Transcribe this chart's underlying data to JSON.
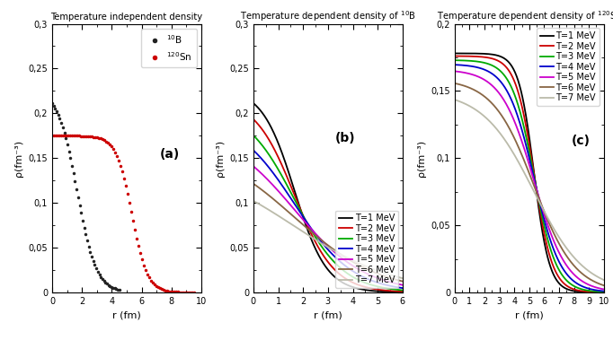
{
  "panel_a": {
    "title": "Temperature independent density",
    "xlabel": "r (fm)",
    "ylabel": "ρ(fm⁻³)",
    "xlim": [
      0,
      10
    ],
    "ylim": [
      0,
      0.3
    ],
    "yticks": [
      0,
      0.05,
      0.1,
      0.15,
      0.2,
      0.25,
      0.3
    ],
    "ytick_labels": [
      "0",
      "0,05",
      "0,1",
      "0,15",
      "0,2",
      "0,25",
      "0,3"
    ],
    "xticks": [
      0,
      2,
      4,
      6,
      8,
      10
    ],
    "label": "(a)",
    "B10": {
      "color": "#222222",
      "rho0": 0.228,
      "R": 1.65,
      "a": 0.65
    },
    "Sn120": {
      "color": "#cc0000",
      "rho0": 0.175,
      "R": 5.32,
      "a": 0.52
    }
  },
  "panel_b": {
    "title": "Temperature dependent density of ",
    "xlabel": "r (fm)",
    "ylabel": "ρ(fm⁻³)",
    "xlim": [
      0,
      6
    ],
    "ylim": [
      0,
      0.3
    ],
    "yticks": [
      0,
      0.05,
      0.1,
      0.15,
      0.2,
      0.25,
      0.3
    ],
    "ytick_labels": [
      "0",
      "0,05",
      "0,1",
      "0,15",
      "0,2",
      "0,25",
      "0,3"
    ],
    "xticks": [
      0,
      1,
      2,
      3,
      4,
      5,
      6
    ],
    "label": "(b)",
    "R_vals": [
      1.65,
      1.65,
      1.65,
      1.65,
      1.65,
      1.65,
      1.65
    ],
    "a_vals": [
      0.65,
      0.8,
      0.98,
      1.18,
      1.42,
      1.72,
      2.05
    ],
    "rho0_vals": [
      0.228,
      0.218,
      0.208,
      0.198,
      0.185,
      0.168,
      0.148
    ],
    "colors": [
      "#000000",
      "#cc0000",
      "#00aa00",
      "#0000cc",
      "#cc00cc",
      "#886644",
      "#bbbbaa"
    ],
    "labels": [
      "T=1 MeV",
      "T=2 MeV",
      "T=3 MeV",
      "T=4 MeV",
      "T=5 MeV",
      "T=6 MeV",
      "T=7 MeV"
    ]
  },
  "panel_c": {
    "title": "Temperature dependent density of ",
    "xlabel": "r (fm)",
    "ylabel": "ρ(fm⁻³)",
    "xlim": [
      0,
      10
    ],
    "ylim": [
      0,
      0.2
    ],
    "yticks": [
      0,
      0.05,
      0.1,
      0.15,
      0.2
    ],
    "ytick_labels": [
      "0",
      "0,05",
      "0,1",
      "0,15",
      "0,2"
    ],
    "xticks": [
      0,
      1,
      2,
      3,
      4,
      5,
      6,
      7,
      8,
      9,
      10
    ],
    "label": "(c)",
    "R_vals": [
      5.32,
      5.32,
      5.32,
      5.32,
      5.32,
      5.32,
      5.32
    ],
    "a_vals": [
      0.52,
      0.62,
      0.75,
      0.9,
      1.1,
      1.38,
      1.72
    ],
    "rho0_vals": [
      0.178,
      0.176,
      0.173,
      0.17,
      0.166,
      0.159,
      0.15
    ],
    "colors": [
      "#000000",
      "#cc0000",
      "#00aa00",
      "#0000cc",
      "#cc00cc",
      "#886644",
      "#bbbbaa"
    ],
    "labels": [
      "T=1 MeV",
      "T=2 MeV",
      "T=3 MeV",
      "T=4 MeV",
      "T=5 MeV",
      "T=6 MeV",
      "T=7 MeV"
    ]
  }
}
